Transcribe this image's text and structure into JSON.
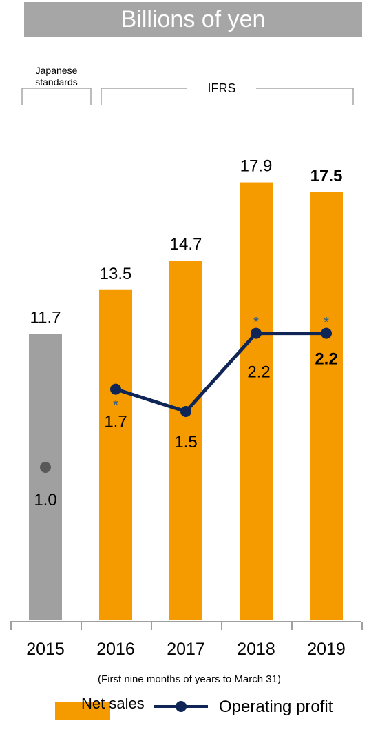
{
  "title": "Billions of yen",
  "chart_data": {
    "type": "bar",
    "categories": [
      "2015",
      "2016",
      "2017",
      "2018",
      "2019"
    ],
    "ylim": [
      0,
      20
    ],
    "series": [
      {
        "name": "Net sales",
        "kind": "bar",
        "values": [
          11.7,
          13.5,
          14.7,
          17.9,
          17.5
        ],
        "colors": [
          "#a0a0a0",
          "#f59b00",
          "#f59b00",
          "#f59b00",
          "#f59b00"
        ]
      },
      {
        "name": "Operating profit",
        "kind": "line",
        "values": [
          1.0,
          1.7,
          1.5,
          2.2,
          2.2
        ],
        "color": "#0f2556",
        "point_colors": [
          "#595959",
          "#0f2556",
          "#0f2556",
          "#0f2556",
          "#0f2556"
        ],
        "connected": [
          false,
          true,
          true,
          true,
          true
        ]
      }
    ],
    "asterisk_marks": [
      "",
      "*",
      "",
      "*",
      "*"
    ],
    "asterisk_color": "#1f5a96",
    "bold_last_labels": true,
    "groups": [
      {
        "label": "Japanese standards",
        "lines": [
          "Japanese",
          "standards"
        ],
        "from": 0,
        "to": 0
      },
      {
        "label": "IFRS",
        "lines": [
          "IFRS"
        ],
        "from": 1,
        "to": 4
      }
    ],
    "x_note": "(First nine months of years to March 31)",
    "legend": [
      "Net sales",
      "Operating profit"
    ]
  }
}
